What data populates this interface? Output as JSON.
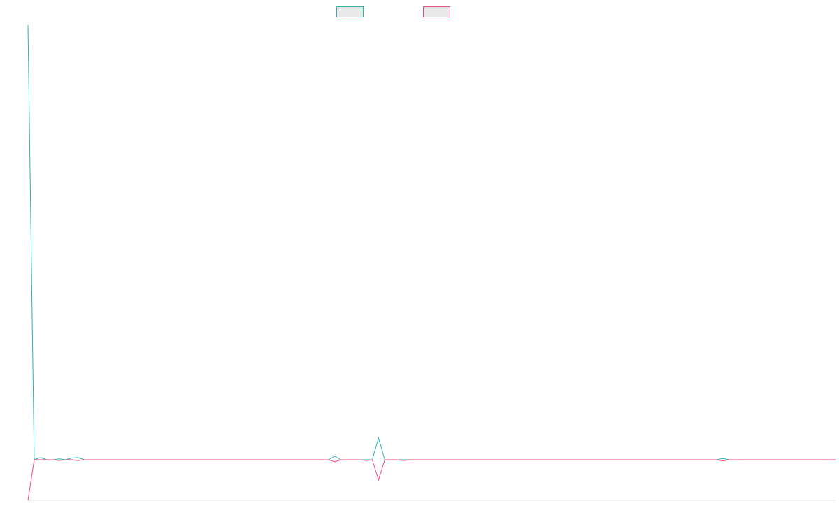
{
  "chart_data": {
    "type": "line",
    "title": "",
    "xlabel": "",
    "ylabel": "",
    "grid": false,
    "legend_placement": "top-center",
    "y_range": [
      -1,
      10
    ],
    "x_count": 130,
    "series": [
      {
        "color": "#2ab1b1",
        "points": [
          [
            0,
            10
          ],
          [
            1,
            0
          ],
          [
            2,
            0.05
          ],
          [
            5,
            0.02
          ],
          [
            7,
            0.04
          ],
          [
            8,
            0.05
          ],
          [
            49,
            0.08
          ],
          [
            56,
            0.5
          ],
          [
            111,
            0.03
          ]
        ]
      },
      {
        "color": "#f24a7a",
        "points": [
          [
            0,
            -1
          ],
          [
            1,
            0
          ],
          [
            5,
            -0.02
          ],
          [
            8,
            -0.02
          ],
          [
            49,
            -0.05
          ],
          [
            54,
            -0.02
          ],
          [
            56,
            -0.5
          ],
          [
            60,
            -0.02
          ],
          [
            111,
            -0.03
          ]
        ]
      }
    ]
  },
  "legend": [
    {
      "color": "#2ab1b1"
    },
    {
      "color": "#f24a7a"
    }
  ]
}
